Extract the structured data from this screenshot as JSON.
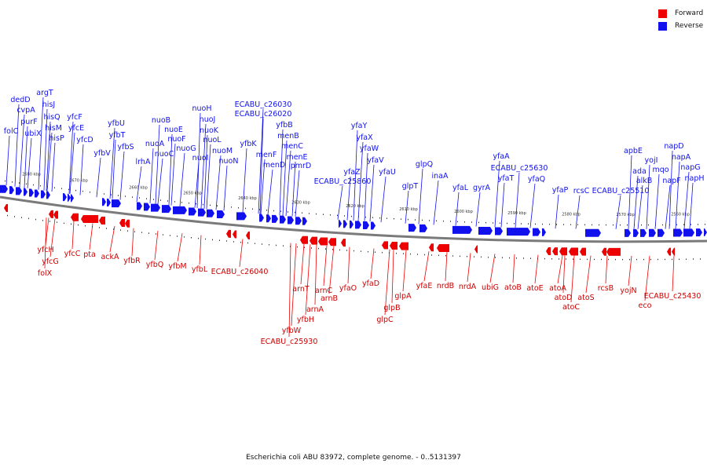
{
  "colors": {
    "forward": "#ee0000",
    "reverse": "#1111ee",
    "backbone": "#777777",
    "labels_forward": "#cc0000",
    "labels_reverse": "#0000bb"
  },
  "legend": [
    {
      "label": "Forward",
      "color": "#ee0000"
    },
    {
      "label": "Reverse",
      "color": "#1111ee"
    }
  ],
  "caption": "Escherichia coli ABU 83972, complete genome. - 0..5131397",
  "ticks": [
    "2680 kbp",
    "2670 kbp",
    "2660 kbp",
    "2650 kbp",
    "2640 kbp",
    "2630 kbp",
    "2620 kbp",
    "2610 kbp",
    "2600 kbp",
    "2590 kbp",
    "2580 kbp",
    "2570 kbp",
    "2560 kbp"
  ],
  "reverse_genes": [
    "folC",
    "dedD",
    "cvpA",
    "purF",
    "ubiX",
    "argT",
    "hisJ",
    "hisQ",
    "hisM",
    "hisP",
    "yfcF",
    "yfcE",
    "yfcD",
    "yfbV",
    "yfbU",
    "yfbT",
    "yfbS",
    "lrhA",
    "nuoA",
    "nuoB",
    "nuoC",
    "nuoE",
    "nuoF",
    "nuoG",
    "nuoH",
    "nuoI",
    "nuoJ",
    "nuoK",
    "nuoL",
    "nuoM",
    "nuoN",
    "yfbK",
    "ECABU_c26030",
    "ECABU_c26020",
    "menF",
    "menD",
    "yfbB",
    "menB",
    "menC",
    "menE",
    "pmrD",
    "ECABU_c25860",
    "yfaZ",
    "yfaY",
    "yfaX",
    "yfaW",
    "yfaV",
    "yfaU",
    "glpT",
    "glpQ",
    "inaA",
    "yfaL",
    "gyrA",
    "yfaA",
    "yfaT",
    "ECABU_c25630",
    "yfaQ",
    "yfaP",
    "rcsC",
    "ECABU_c25510",
    "apbE",
    "ada",
    "alkB",
    "yojI",
    "mqo",
    "napF",
    "napD",
    "napA",
    "napG",
    "napH"
  ],
  "forward_genes": [
    "folX",
    "yfcH",
    "yfcG",
    "yfcC",
    "pta",
    "ackA",
    "yfbR",
    "yfbQ",
    "yfbM",
    "yfbL",
    "ECABU_c26040",
    "yfbW",
    "ECABU_c25930",
    "arnT",
    "yfbH",
    "arnA",
    "arnC",
    "arnB",
    "yfaO",
    "yfaD",
    "glpC",
    "glpB",
    "glpA",
    "yfaE",
    "nrdB",
    "nrdA",
    "ubiG",
    "atoB",
    "atoE",
    "atoA",
    "atoD",
    "atoC",
    "atoS",
    "rcsB",
    "yojN",
    "eco",
    "ECABU_c25430"
  ]
}
